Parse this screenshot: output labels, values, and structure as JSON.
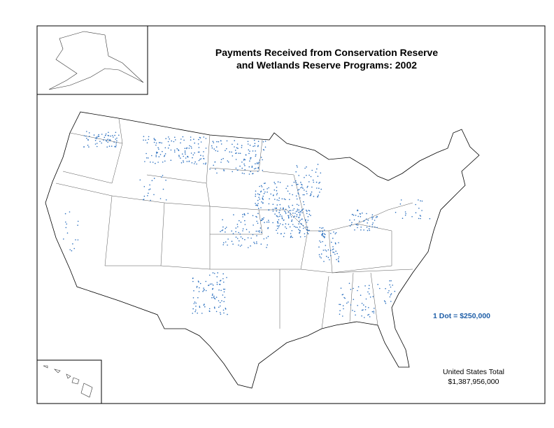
{
  "title": [
    "Payments Received from Conservation Reserve",
    "and Wetlands Reserve Programs:  2002"
  ],
  "legend": "1 Dot = $250,000",
  "total": {
    "label": "United States Total",
    "value": "$1,387,956,000"
  }
}
